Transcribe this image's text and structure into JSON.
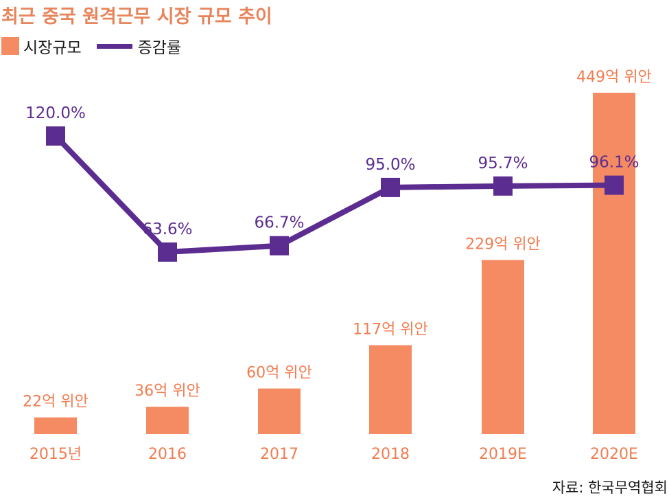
{
  "title": "최근 중국 원격근무 시장 규모 추이",
  "source": "자료: 한국무역협회",
  "colors": {
    "title": "#e8845a",
    "bar": "#f58b63",
    "bar_label": "#f07d50",
    "line": "#5c2d91",
    "axis_label": "#f07d50"
  },
  "legend": [
    {
      "label": "시장규모",
      "kind": "bar"
    },
    {
      "label": "증감률",
      "kind": "line"
    }
  ],
  "chart_data": {
    "type": "bar",
    "categories": [
      "2015년",
      "2016",
      "2017",
      "2018",
      "2019E",
      "2020E"
    ],
    "series": [
      {
        "name": "시장규모",
        "type": "bar",
        "unit": "억 위안",
        "values": [
          22,
          36,
          60,
          117,
          229,
          449
        ],
        "labels": [
          "22억 위안",
          "36억 위안",
          "60억 위안",
          "117억 위안",
          "229억 위안",
          "449억 위안"
        ]
      },
      {
        "name": "증감률",
        "type": "line",
        "unit": "%",
        "values": [
          120.0,
          63.6,
          66.7,
          95.0,
          95.7,
          96.1
        ],
        "labels": [
          "120.0%",
          "63.6%",
          "66.7%",
          "95.0%",
          "95.7%",
          "96.1%"
        ]
      }
    ],
    "legend_position": "top-left",
    "grid": false
  }
}
